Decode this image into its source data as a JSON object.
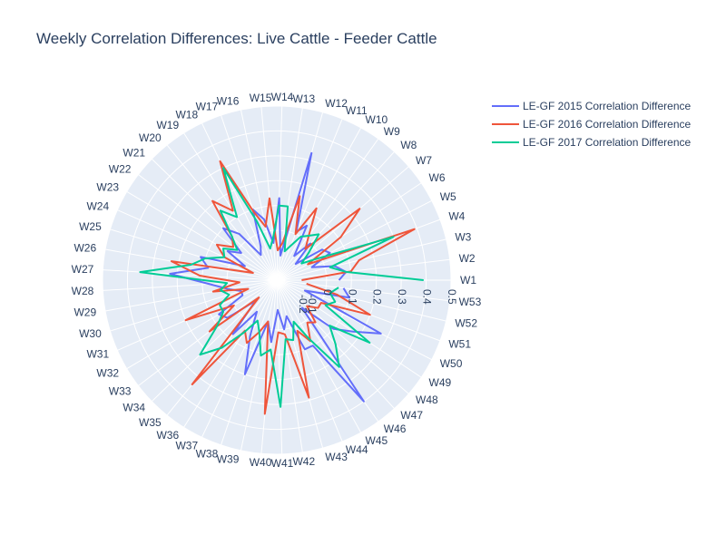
{
  "chart_data": {
    "type": "line",
    "subtype": "polar",
    "title": "Weekly Correlation Differences: Live Cattle - Feeder Cattle",
    "angular_categories": [
      "W1",
      "W2",
      "W3",
      "W4",
      "W5",
      "W6",
      "W7",
      "W8",
      "W9",
      "W10",
      "W11",
      "W12",
      "W13",
      "W14",
      "W15",
      "W16",
      "W17",
      "W18",
      "W19",
      "W20",
      "W21",
      "W22",
      "W23",
      "W24",
      "W25",
      "W26",
      "W27",
      "W28",
      "W29",
      "W30",
      "W31",
      "W32",
      "W33",
      "W34",
      "W35",
      "W36",
      "W37",
      "W38",
      "W39",
      "W40",
      "W41",
      "W42",
      "W43",
      "W44",
      "W45",
      "W46",
      "W47",
      "W48",
      "W49",
      "W50",
      "W51",
      "W52",
      "W53"
    ],
    "angular_direction": "counterclockwise",
    "angular_rotation_deg": 0,
    "radial_range": [
      -0.2,
      0.5
    ],
    "radial_ticks": [
      0,
      0.1,
      0.2,
      0.3,
      0.4,
      0.5
    ],
    "radial_tick_labels": [
      "0",
      "0.1",
      "0.2",
      "0.3",
      "0.4",
      "0.5"
    ],
    "radial_extra_labels": [
      "-0.1",
      "-0.2"
    ],
    "grid": true,
    "legend_position": "top-right",
    "series": [
      {
        "name": "LE-GF 2015 Correlation Difference",
        "color": "#636efa",
        "r": [
          0.05,
          0.08,
          0.04,
          -0.05,
          0.04,
          0.02,
          -0.1,
          0.0,
          -0.08,
          0.05,
          0.01,
          0.33,
          -0.1,
          0.13,
          -0.05,
          0.05,
          0.1,
          -0.05,
          -0.08,
          0.04,
          0.1,
          -0.02,
          0.03,
          -0.06,
          0.12,
          0.08,
          0.23,
          0.07,
          0.0,
          -0.05,
          -0.05,
          0.07,
          0.05,
          -0.08,
          0.08,
          -0.05,
          0.05,
          0.2,
          -0.03,
          0.05,
          -0.08,
          0.0,
          -0.05,
          0.1,
          0.1,
          0.4,
          -0.05,
          0.1,
          0.17,
          0.27,
          -0.08,
          0.1,
          0.07
        ]
      },
      {
        "name": "LE-GF 2016 Correlation Difference",
        "color": "#ef553b",
        "r": [
          -0.1,
          0.1,
          0.14,
          0.39,
          -0.06,
          0.11,
          0.24,
          -0.03,
          0.02,
          0.13,
          0.0,
          0.15,
          -0.05,
          -0.08,
          0.13,
          0.02,
          0.09,
          0.33,
          0.13,
          0.21,
          0.05,
          0.02,
          0.08,
          0.03,
          -0.1,
          0.23,
          0.11,
          -0.05,
          0.06,
          -0.08,
          0.2,
          0.0,
          0.14,
          -0.1,
          0.34,
          0.04,
          0.08,
          0.02,
          -0.03,
          0.34,
          0.01,
          0.02,
          0.29,
          0.02,
          0.08,
          0.01,
          0.03,
          -0.04,
          0.0,
          0.0,
          0.2,
          0.05,
          -0.08
        ]
      },
      {
        "name": "LE-GF 2017 Correlation Difference",
        "color": "#00cc96",
        "r": [
          0.39,
          0.08,
          0.02,
          0.3,
          0.0,
          -0.08,
          -0.03,
          0.05,
          0.02,
          0.0,
          -0.05,
          -0.08,
          0.1,
          0.1,
          -0.03,
          -0.07,
          0.05,
          0.3,
          0.1,
          0.16,
          0.05,
          0.0,
          0.05,
          0.03,
          0.1,
          0.15,
          0.35,
          0.0,
          0.03,
          0.0,
          0.05,
          0.05,
          0.1,
          0.23,
          0.15,
          0.05,
          -0.02,
          0.02,
          0.11,
          0.08,
          0.31,
          0.04,
          0.05,
          -0.02,
          0.07,
          0.23,
          0.15,
          0.08,
          0.25,
          0.02,
          0.05,
          0.02,
          0.05
        ]
      }
    ]
  }
}
